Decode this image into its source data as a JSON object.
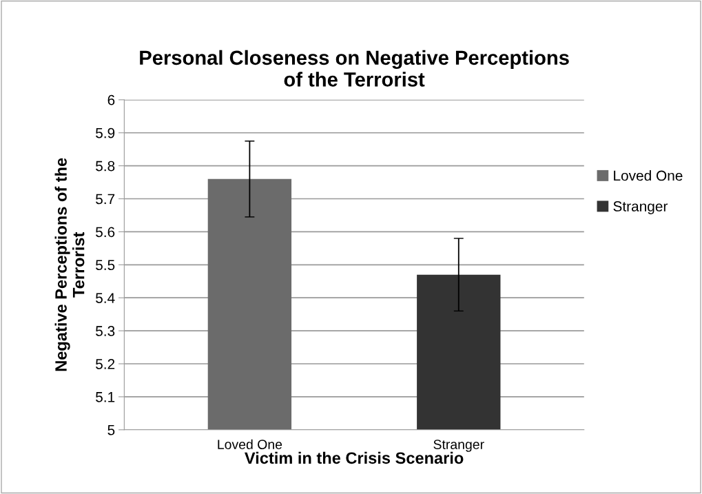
{
  "chart_data": {
    "type": "bar",
    "title": "Personal Closeness on Negative Perceptions\nof the Terrorist",
    "xlabel": "Victim in the Crisis Scenario",
    "ylabel": "Negative Perceptions of the\nTerrorist",
    "categories": [
      "Loved One",
      "Stranger"
    ],
    "series": [
      {
        "name": "Loved One",
        "color": "#6b6b6b",
        "values": [
          5.76,
          null
        ],
        "errors": [
          0.115,
          null
        ]
      },
      {
        "name": "Stranger",
        "color": "#333333",
        "values": [
          null,
          5.47
        ],
        "errors": [
          null,
          0.11
        ]
      }
    ],
    "ylim": [
      5,
      6
    ],
    "yticks": [
      5,
      5.1,
      5.2,
      5.3,
      5.4,
      5.5,
      5.6,
      5.7,
      5.8,
      5.9,
      6
    ],
    "grid": "y",
    "legend": "right"
  }
}
